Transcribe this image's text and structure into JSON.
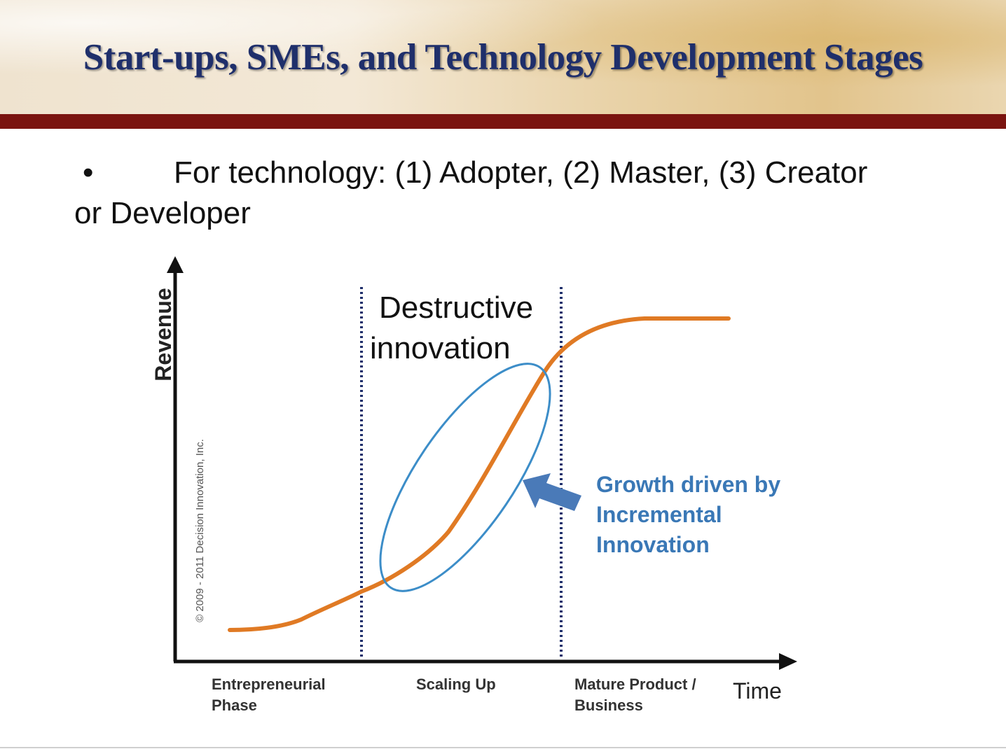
{
  "slide": {
    "title": "Start-ups, SMEs, and Technology Development Stages",
    "bullet": {
      "symbol": "•",
      "line1": "For technology:  (1) Adopter, (2) Master, (3) Creator",
      "line2": "or Developer"
    }
  },
  "diagram": {
    "y_axis_label": "Revenue",
    "x_axis_label": "Time",
    "copyright": "© 2009 - 2011 Decision Innovation, Inc.",
    "phases": [
      {
        "line1": "Entrepreneurial",
        "line2": "Phase"
      },
      {
        "line1": "Scaling Up",
        "line2": ""
      },
      {
        "line1": "Mature Product /",
        "line2": "Business"
      }
    ],
    "annotation_destructive": {
      "line1": "Destructive",
      "line2": "innovation"
    },
    "annotation_incremental": {
      "line1": "Growth driven by",
      "line2": "Incremental",
      "line3": "Innovation"
    },
    "colors": {
      "curve": "#e07a24",
      "ellipse": "#3c8dc8",
      "arrow": "#4a7ab8",
      "incremental_text": "#3a78b6",
      "divider": "#1f2f6b",
      "axis": "#111111",
      "title": "#1f2f6b",
      "header_bar": "#7a1410"
    }
  }
}
